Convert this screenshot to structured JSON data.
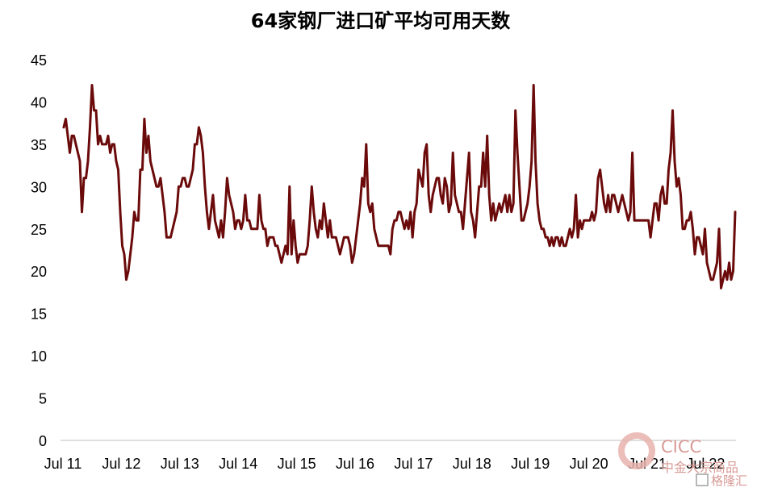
{
  "chart_data": {
    "type": "line",
    "title": "64家钢厂进口矿平均可用天数",
    "xlabel": "",
    "ylabel": "",
    "ylim": [
      0,
      45
    ],
    "yticks": [
      0,
      5,
      10,
      15,
      20,
      25,
      30,
      35,
      40,
      45
    ],
    "xticks": [
      "Jul 11",
      "Jul 12",
      "Jul 13",
      "Jul 14",
      "Jul 15",
      "Jul 16",
      "Jul 17",
      "Jul 18",
      "Jul 19",
      "Jul 20",
      "Jul 21",
      "Jul 22"
    ],
    "x_start": "2011-07",
    "x_end": "2022-11",
    "grid": false,
    "legend": "none",
    "line_color": "#6b0a0a",
    "series": [
      {
        "values": [
          37,
          38,
          36,
          34,
          36,
          36,
          35,
          34,
          33,
          27,
          31,
          31,
          33,
          37,
          42,
          39,
          39,
          35,
          36,
          35,
          35,
          35,
          36,
          34,
          35,
          35,
          33,
          32,
          27,
          23,
          22,
          19,
          20,
          22,
          24,
          27,
          26,
          26,
          32,
          32,
          38,
          34,
          36,
          33,
          32,
          31,
          30,
          30,
          31,
          29,
          27,
          24,
          24,
          24,
          25,
          26,
          27,
          30,
          30,
          31,
          31,
          30,
          30,
          31,
          32,
          35,
          35,
          37,
          36,
          34,
          30,
          27,
          25,
          27,
          29,
          26,
          25,
          24,
          26,
          24,
          27,
          31,
          29,
          28,
          27,
          25,
          26,
          26,
          25,
          26,
          29,
          26,
          26,
          25,
          25,
          25,
          25,
          29,
          26,
          25,
          25,
          23,
          24,
          24,
          24,
          23,
          23,
          22,
          21,
          22,
          23,
          22,
          30,
          22,
          26,
          23,
          21,
          22,
          22,
          22,
          22,
          23,
          26,
          30,
          27,
          25,
          24,
          26,
          25,
          28,
          26,
          24,
          26,
          24,
          24,
          24,
          23,
          22,
          23,
          24,
          24,
          24,
          23,
          21,
          22,
          24,
          26,
          28,
          31,
          30,
          35,
          28,
          27,
          28,
          25,
          24,
          23,
          23,
          23,
          23,
          23,
          23,
          22,
          25,
          26,
          26,
          27,
          27,
          26,
          25,
          26,
          25,
          27,
          24,
          27,
          28,
          32,
          31,
          30,
          34,
          35,
          29,
          27,
          29,
          30,
          31,
          31,
          29,
          28,
          31,
          30,
          27,
          28,
          34,
          29,
          28,
          27,
          27,
          25,
          28,
          31,
          34,
          27,
          26,
          24,
          27,
          30,
          30,
          34,
          30,
          36,
          29,
          26,
          28,
          26,
          27,
          28,
          27,
          28,
          29,
          27,
          29,
          27,
          28,
          39,
          34,
          30,
          26,
          26,
          27,
          28,
          30,
          33,
          42,
          33,
          28,
          26,
          25,
          25,
          24,
          24,
          23,
          24,
          23,
          24,
          24,
          23,
          24,
          23,
          23,
          24,
          25,
          24,
          25,
          29,
          24,
          26,
          25,
          26,
          26,
          26,
          26,
          27,
          26,
          27,
          31,
          32,
          30,
          28,
          27,
          29,
          27,
          29,
          29,
          28,
          27,
          28,
          29,
          28,
          27,
          26,
          27,
          34,
          26,
          26,
          26,
          26,
          26,
          26,
          26,
          26,
          24,
          26,
          28,
          28,
          26,
          29,
          30,
          28,
          28,
          32,
          34,
          39,
          33,
          30,
          31,
          29,
          25,
          25,
          26,
          26,
          27,
          25,
          22,
          24,
          24,
          23,
          22,
          25,
          21,
          20,
          19,
          19,
          20,
          21,
          25,
          18,
          19,
          20,
          19,
          21,
          19,
          20,
          27
        ]
      }
    ]
  },
  "watermark": {
    "brand": "CICC",
    "line1": "中金大宗商品",
    "line2": "格隆汇"
  }
}
